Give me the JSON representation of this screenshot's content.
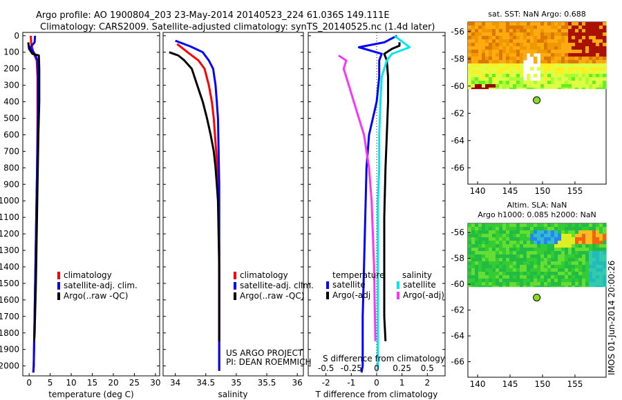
{
  "header": {
    "line1": "Argo profile: AO 1900804_203 23-May-2014 20140523_224 61.036S 149.111E",
    "line2": "Climatology: CARS2009. Satellite-adjusted climatology: synTS_20140525.nc (1.4d later)"
  },
  "side_label": "IMOS 01-Jun-2014 20:00:26",
  "colors": {
    "climatology": "#ff0000",
    "satellite": "#0000ff",
    "argo": "#000000",
    "sat_salinity": "#00e5ee",
    "argo_salinity": "#ff33ff"
  },
  "chart_data": [
    {
      "id": "temperature",
      "type": "line",
      "xlabel": "temperature (deg C)",
      "ylabel": "",
      "xlim": [
        -1.5,
        31
      ],
      "ylim": [
        2060,
        -20
      ],
      "x_ticks": [
        0,
        5,
        10,
        15,
        20,
        25,
        30
      ],
      "y_ticks": [
        0,
        100,
        200,
        300,
        400,
        500,
        600,
        700,
        800,
        900,
        1000,
        1100,
        1200,
        1300,
        1400,
        1500,
        1600,
        1700,
        1800,
        1900,
        2000
      ],
      "legend": [
        "climatology",
        "satellite-adj. clim.",
        "Argo(..raw -QC)"
      ],
      "series": [
        {
          "name": "climatology",
          "color": "#ff0000",
          "points": [
            [
              0.4,
              0
            ],
            [
              0.5,
              50
            ],
            [
              1.0,
              100
            ],
            [
              1.8,
              150
            ],
            [
              2.0,
              250
            ],
            [
              2.0,
              500
            ],
            [
              1.9,
              800
            ],
            [
              1.7,
              1100
            ],
            [
              1.5,
              1400
            ],
            [
              1.3,
              1700
            ],
            [
              1.1,
              2000
            ],
            [
              1.0,
              2040
            ]
          ]
        },
        {
          "name": "satellite-adj. clim.",
          "color": "#0000ff",
          "points": [
            [
              1.4,
              0
            ],
            [
              1.3,
              40
            ],
            [
              0.3,
              70
            ],
            [
              1.3,
              110
            ],
            [
              2.0,
              150
            ],
            [
              2.1,
              250
            ],
            [
              2.1,
              500
            ],
            [
              1.9,
              800
            ],
            [
              1.7,
              1100
            ],
            [
              1.5,
              1400
            ],
            [
              1.3,
              1700
            ],
            [
              1.1,
              2000
            ],
            [
              1.0,
              2040
            ]
          ]
        },
        {
          "name": "Argo(..raw -QC)",
          "color": "#000000",
          "points": [
            [
              -0.2,
              40
            ],
            [
              0.0,
              80
            ],
            [
              0.8,
              110
            ],
            [
              2.3,
              120
            ],
            [
              2.4,
              200
            ],
            [
              2.4,
              400
            ],
            [
              2.2,
              600
            ],
            [
              2.0,
              900
            ],
            [
              1.8,
              1200
            ],
            [
              1.6,
              1500
            ],
            [
              1.3,
              1800
            ],
            [
              1.2,
              1850
            ]
          ]
        }
      ]
    },
    {
      "id": "salinity",
      "type": "line",
      "xlabel": "salinity",
      "xlim": [
        33.8,
        36.1
      ],
      "ylim": [
        2060,
        -20
      ],
      "x_ticks": [
        34,
        34.5,
        35,
        35.5,
        36
      ],
      "legend": [
        "climatology",
        "satellite-adj. clim.",
        "Argo(..raw -QC)"
      ],
      "annotation": [
        "US ARGO PROJECT",
        "PI: DEAN ROEMMICH"
      ],
      "series": [
        {
          "name": "climatology",
          "color": "#ff0000",
          "points": [
            [
              34.03,
              50
            ],
            [
              34.2,
              100
            ],
            [
              34.38,
              150
            ],
            [
              34.48,
              200
            ],
            [
              34.55,
              300
            ],
            [
              34.6,
              400
            ],
            [
              34.63,
              500
            ],
            [
              34.66,
              650
            ],
            [
              34.69,
              800
            ],
            [
              34.71,
              1000
            ],
            [
              34.72,
              1300
            ],
            [
              34.72,
              1600
            ],
            [
              34.72,
              2000
            ],
            [
              34.72,
              2030
            ]
          ]
        },
        {
          "name": "satellite-adj. clim.",
          "color": "#0000ff",
          "points": [
            [
              34.0,
              30
            ],
            [
              34.25,
              65
            ],
            [
              34.45,
              100
            ],
            [
              34.55,
              150
            ],
            [
              34.62,
              200
            ],
            [
              34.66,
              300
            ],
            [
              34.68,
              400
            ],
            [
              34.7,
              500
            ],
            [
              34.71,
              700
            ],
            [
              34.72,
              900
            ],
            [
              34.72,
              1200
            ],
            [
              34.72,
              1600
            ],
            [
              34.72,
              2000
            ],
            [
              34.72,
              2030
            ]
          ]
        },
        {
          "name": "Argo(..raw -QC)",
          "color": "#000000",
          "points": [
            [
              33.9,
              100
            ],
            [
              34.05,
              120
            ],
            [
              34.15,
              150
            ],
            [
              34.27,
              200
            ],
            [
              34.36,
              300
            ],
            [
              34.45,
              400
            ],
            [
              34.52,
              500
            ],
            [
              34.58,
              600
            ],
            [
              34.63,
              700
            ],
            [
              34.66,
              800
            ],
            [
              34.68,
              900
            ],
            [
              34.7,
              1000
            ],
            [
              34.71,
              1200
            ],
            [
              34.72,
              1400
            ],
            [
              34.72,
              1600
            ],
            [
              34.72,
              1850
            ]
          ]
        }
      ]
    },
    {
      "id": "difference",
      "type": "line",
      "xlabel": "T difference from climatology",
      "xlabel_top": "S difference from climatology",
      "xlim": [
        -2.7,
        2.7
      ],
      "ylim": [
        2060,
        -20
      ],
      "x_ticks": [
        -2,
        -1,
        0,
        1,
        2
      ],
      "x_ticks_top": [
        -0.5,
        -0.25,
        0,
        0.25,
        0.5
      ],
      "legend_temperature_title": "temperature",
      "legend_salinity_title": "salinity",
      "legend_temperature": [
        "satellite",
        "Argo(-adj"
      ],
      "legend_salinity": [
        "satellite",
        "Argo(-adj)"
      ],
      "series": [
        {
          "name": "T satellite",
          "color": "#0000ff",
          "points": [
            [
              0.8,
              0
            ],
            [
              0.3,
              40
            ],
            [
              -0.7,
              70
            ],
            [
              0.2,
              110
            ],
            [
              0.1,
              150
            ],
            [
              0.1,
              250
            ],
            [
              0.0,
              400
            ],
            [
              -0.3,
              600
            ],
            [
              -0.4,
              800
            ],
            [
              -0.45,
              1100
            ],
            [
              -0.5,
              1400
            ],
            [
              -0.55,
              1700
            ],
            [
              -0.55,
              2000
            ],
            [
              -0.6,
              2040
            ]
          ]
        },
        {
          "name": "T Argo(-adj",
          "color": "#000000",
          "points": [
            [
              0.9,
              40
            ],
            [
              0.9,
              60
            ],
            [
              0.6,
              80
            ],
            [
              0.3,
              110
            ],
            [
              0.4,
              150
            ],
            [
              0.45,
              250
            ],
            [
              0.45,
              400
            ],
            [
              0.4,
              600
            ],
            [
              0.35,
              800
            ],
            [
              0.3,
              1100
            ],
            [
              0.3,
              1400
            ],
            [
              0.3,
              1700
            ],
            [
              0.35,
              1850
            ]
          ]
        },
        {
          "name": "S satellite",
          "color": "#00e5ee",
          "points": [
            [
              0.7,
              0
            ],
            [
              1.3,
              70
            ],
            [
              0.6,
              110
            ],
            [
              0.4,
              150
            ],
            [
              0.2,
              250
            ],
            [
              0.15,
              400
            ],
            [
              0.1,
              600
            ],
            [
              0.1,
              800
            ],
            [
              0.05,
              1000
            ],
            [
              0.05,
              1400
            ],
            [
              0.05,
              1800
            ],
            [
              0.05,
              2020
            ]
          ]
        },
        {
          "name": "S Argo(-adj)",
          "color": "#ff33ff",
          "points": [
            [
              -1.5,
              120
            ],
            [
              -1.2,
              150
            ],
            [
              -1.3,
              200
            ],
            [
              -1.1,
              300
            ],
            [
              -0.9,
              400
            ],
            [
              -0.7,
              500
            ],
            [
              -0.5,
              600
            ],
            [
              -0.4,
              700
            ],
            [
              -0.3,
              800
            ],
            [
              -0.2,
              1000
            ],
            [
              -0.15,
              1200
            ],
            [
              -0.1,
              1400
            ],
            [
              -0.08,
              1600
            ],
            [
              -0.05,
              1850
            ]
          ]
        }
      ]
    },
    {
      "id": "sst_map",
      "type": "heatmap",
      "title": "sat. SST: NaN Argo: 0.688",
      "xlim": [
        138.5,
        159.8
      ],
      "ylim": [
        -67.2,
        -55.3
      ],
      "x_ticks": [
        140,
        145,
        150,
        155
      ],
      "y_ticks": [
        -56,
        -58,
        -60,
        -62,
        -64,
        -66
      ],
      "argo_position": [
        149.111,
        -61.036
      ]
    },
    {
      "id": "sla_map",
      "type": "heatmap",
      "title": "Altim. SLA: NaN",
      "subtitle": "Argo h1000: 0.085 h2000: NaN",
      "xlim": [
        138.5,
        159.8
      ],
      "ylim": [
        -67.2,
        -55.3
      ],
      "x_ticks": [
        140,
        145,
        150,
        155
      ],
      "y_ticks": [
        -56,
        -58,
        -60,
        -62,
        -64,
        -66
      ],
      "argo_position": [
        149.111,
        -61.036
      ]
    }
  ]
}
